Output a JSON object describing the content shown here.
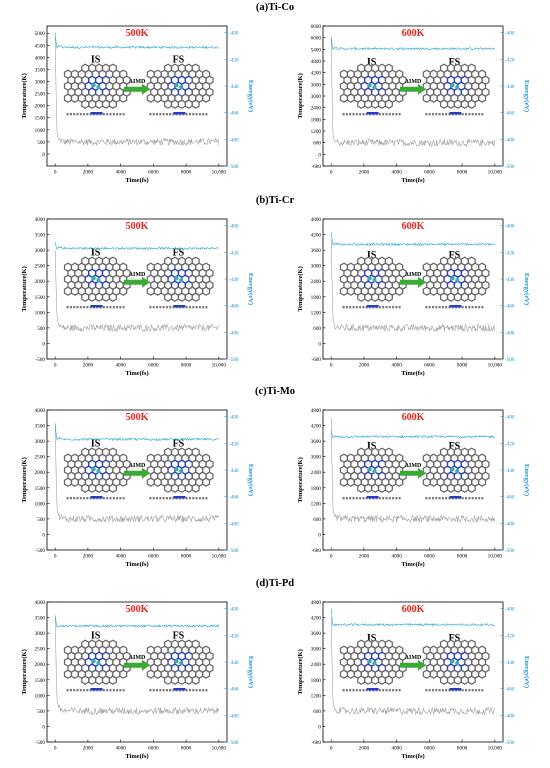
{
  "figure": {
    "rows": [
      {
        "label": "(a)Ti-Co"
      },
      {
        "label": "(b)Ti-Cr"
      },
      {
        "label": "(c)Ti-Mo"
      },
      {
        "label": "(d)Ti-Pd"
      }
    ],
    "inset_text": {
      "initial": "IS",
      "final": "FS",
      "arrow": "AIMD"
    }
  },
  "colors": {
    "temperature_line": "#9a9a9a",
    "energy_line": "#2aa7d6",
    "temperature_title": "#e8231f",
    "energy_axis": "#1f8fd0",
    "arrow": "#3aaa35"
  },
  "chart_data": [
    {
      "type": "line",
      "row": "(a)Ti-Co",
      "title": "500K",
      "xlabel": "Time(fs)",
      "ylabel": "Temperature(K)",
      "y2label": "Energy(eV)",
      "xlim": [
        -500,
        10500
      ],
      "xticks": [
        0,
        2000,
        4000,
        6000,
        8000,
        10000
      ],
      "xtick_labels": [
        "0",
        "2000",
        "4000",
        "6000",
        "8000",
        "10,000"
      ],
      "ylim": [
        -500,
        5300
      ],
      "yticks": [
        0,
        500,
        1000,
        1500,
        2000,
        2500,
        3000,
        3500,
        4000,
        4500,
        5000
      ],
      "y2lim": [
        -500,
        -395
      ],
      "y2ticks": [
        -500,
        -480,
        -460,
        -440,
        -420,
        -400
      ],
      "series": [
        {
          "axis": "temperature",
          "x": [
            0,
            100,
            200,
            500,
            1000,
            2000,
            4000,
            6000,
            8000,
            10000
          ],
          "y": [
            4800,
            900,
            600,
            500,
            500,
            500,
            500,
            500,
            500,
            500
          ]
        },
        {
          "axis": "energy",
          "x": [
            0,
            100,
            200,
            500,
            1000,
            2000,
            4000,
            6000,
            8000,
            10000
          ],
          "y": [
            -400,
            -412,
            -410,
            -411,
            -411,
            -411,
            -411,
            -411,
            -411,
            -411
          ]
        }
      ]
    },
    {
      "type": "line",
      "row": "(a)Ti-Co",
      "title": "600K",
      "xlabel": "Time(fs)",
      "ylabel": "Temperature(K)",
      "y2label": "Energy(eV)",
      "xlim": [
        -500,
        10500
      ],
      "xticks": [
        0,
        2000,
        4000,
        6000,
        8000,
        10000
      ],
      "xtick_labels": [
        "0",
        "2000",
        "4000",
        "6000",
        "8000",
        "10,000"
      ],
      "ylim": [
        -600,
        6600
      ],
      "yticks": [
        -600,
        0,
        600,
        1200,
        1800,
        2400,
        3000,
        3600,
        4200,
        4800,
        5400,
        6000,
        6600
      ],
      "y2lim": [
        -500,
        -395
      ],
      "y2ticks": [
        -500,
        -480,
        -460,
        -440,
        -420,
        -400
      ],
      "series": [
        {
          "axis": "temperature",
          "x": [
            0,
            100,
            200,
            500,
            1000,
            2000,
            4000,
            6000,
            8000,
            10000
          ],
          "y": [
            6000,
            1000,
            700,
            600,
            600,
            600,
            600,
            600,
            600,
            600
          ]
        },
        {
          "axis": "energy",
          "x": [
            0,
            100,
            200,
            500,
            1000,
            2000,
            4000,
            6000,
            8000,
            10000
          ],
          "y": [
            -403,
            -413,
            -411,
            -412,
            -412,
            -412,
            -412,
            -412,
            -412,
            -412
          ]
        }
      ]
    },
    {
      "type": "line",
      "row": "(b)Ti-Cr",
      "title": "500K",
      "xlabel": "Time(fs)",
      "ylabel": "Temperature(K)",
      "y2label": "Energy(eV)",
      "xlim": [
        -500,
        10500
      ],
      "xticks": [
        0,
        2000,
        4000,
        6000,
        8000,
        10000
      ],
      "xtick_labels": [
        "0",
        "2000",
        "4000",
        "6000",
        "8000",
        "10,000"
      ],
      "ylim": [
        -500,
        4000
      ],
      "yticks": [
        -500,
        0,
        500,
        1000,
        1500,
        2000,
        2500,
        3000,
        3500,
        4000
      ],
      "y2lim": [
        -500,
        -395
      ],
      "y2ticks": [
        -500,
        -480,
        -460,
        -440,
        -420,
        -400
      ],
      "series": [
        {
          "axis": "temperature",
          "x": [
            0,
            100,
            200,
            500,
            1000,
            2000,
            4000,
            6000,
            8000,
            10000
          ],
          "y": [
            3000,
            900,
            600,
            500,
            500,
            500,
            500,
            500,
            500,
            500
          ]
        },
        {
          "axis": "energy",
          "x": [
            0,
            100,
            200,
            500,
            1000,
            2000,
            4000,
            6000,
            8000,
            10000
          ],
          "y": [
            -412,
            -418,
            -416,
            -417,
            -417,
            -417,
            -417,
            -417,
            -417,
            -417
          ]
        }
      ]
    },
    {
      "type": "line",
      "row": "(b)Ti-Cr",
      "title": "600K",
      "xlabel": "Time(fs)",
      "ylabel": "Temperature(K)",
      "y2label": "Energy(eV)",
      "xlim": [
        -500,
        10500
      ],
      "xticks": [
        0,
        2000,
        4000,
        6000,
        8000,
        10000
      ],
      "xtick_labels": [
        "0",
        "2000",
        "4000",
        "6000",
        "8000",
        "10,000"
      ],
      "ylim": [
        -600,
        4800
      ],
      "yticks": [
        -600,
        0,
        600,
        1200,
        1800,
        2400,
        3000,
        3600,
        4200,
        4800
      ],
      "y2lim": [
        -500,
        -395
      ],
      "y2ticks": [
        -500,
        -480,
        -460,
        -440,
        -420,
        -400
      ],
      "series": [
        {
          "axis": "temperature",
          "x": [
            0,
            100,
            200,
            500,
            1000,
            2000,
            4000,
            6000,
            8000,
            10000
          ],
          "y": [
            4000,
            1000,
            700,
            600,
            600,
            600,
            600,
            600,
            600,
            600
          ]
        },
        {
          "axis": "energy",
          "x": [
            0,
            100,
            200,
            500,
            1000,
            2000,
            4000,
            6000,
            8000,
            10000
          ],
          "y": [
            -405,
            -415,
            -413,
            -414,
            -414,
            -414,
            -414,
            -414,
            -414,
            -414
          ]
        }
      ]
    },
    {
      "type": "line",
      "row": "(c)Ti-Mo",
      "title": "500K",
      "xlabel": "Time(fs)",
      "ylabel": "Temperature(K)",
      "y2label": "Energy(eV)",
      "xlim": [
        -500,
        10500
      ],
      "xticks": [
        0,
        2000,
        4000,
        6000,
        8000,
        10000
      ],
      "xtick_labels": [
        "0",
        "2000",
        "4000",
        "6000",
        "8000",
        "10,000"
      ],
      "ylim": [
        -500,
        4000
      ],
      "yticks": [
        -500,
        0,
        500,
        1000,
        1500,
        2000,
        2500,
        3000,
        3500,
        4000
      ],
      "y2lim": [
        -500,
        -395
      ],
      "y2ticks": [
        -500,
        -480,
        -460,
        -440,
        -420,
        -400
      ],
      "series": [
        {
          "axis": "temperature",
          "x": [
            0,
            100,
            200,
            500,
            1000,
            2000,
            4000,
            6000,
            8000,
            10000
          ],
          "y": [
            3500,
            900,
            600,
            500,
            500,
            500,
            500,
            500,
            500,
            500
          ]
        },
        {
          "axis": "energy",
          "x": [
            0,
            100,
            200,
            500,
            1000,
            2000,
            4000,
            6000,
            8000,
            10000
          ],
          "y": [
            -405,
            -418,
            -416,
            -417,
            -417,
            -417,
            -417,
            -417,
            -417,
            -417
          ]
        }
      ]
    },
    {
      "type": "line",
      "row": "(c)Ti-Mo",
      "title": "600K",
      "xlabel": "Time(fs)",
      "ylabel": "Temperature(K)",
      "y2label": "Energy(eV)",
      "xlim": [
        -500,
        10500
      ],
      "xticks": [
        0,
        2000,
        4000,
        6000,
        8000,
        10000
      ],
      "xtick_labels": [
        "0",
        "2000",
        "4000",
        "6000",
        "8000",
        "10,000"
      ],
      "ylim": [
        -600,
        4800
      ],
      "yticks": [
        -600,
        0,
        600,
        1200,
        1800,
        2400,
        3000,
        3600,
        4200,
        4800
      ],
      "y2lim": [
        -500,
        -395
      ],
      "y2ticks": [
        -500,
        -480,
        -460,
        -440,
        -420,
        -400
      ],
      "series": [
        {
          "axis": "temperature",
          "x": [
            0,
            100,
            200,
            500,
            1000,
            2000,
            4000,
            6000,
            8000,
            10000
          ],
          "y": [
            4500,
            1000,
            700,
            600,
            600,
            600,
            600,
            600,
            600,
            600
          ]
        },
        {
          "axis": "energy",
          "x": [
            0,
            100,
            200,
            500,
            1000,
            2000,
            4000,
            6000,
            8000,
            10000
          ],
          "y": [
            -410,
            -416,
            -415,
            -415,
            -415,
            -415,
            -415,
            -415,
            -415,
            -415
          ]
        }
      ]
    },
    {
      "type": "line",
      "row": "(d)Ti-Pd",
      "title": "500K",
      "xlabel": "Time(fs)",
      "ylabel": "Temperature(K)",
      "y2label": "Energy(eV)",
      "xlim": [
        -500,
        10500
      ],
      "xticks": [
        0,
        2000,
        4000,
        6000,
        8000,
        10000
      ],
      "xtick_labels": [
        "0",
        "2000",
        "4000",
        "6000",
        "8000",
        "10,000"
      ],
      "ylim": [
        -500,
        4000
      ],
      "yticks": [
        -500,
        0,
        500,
        1000,
        1500,
        2000,
        2500,
        3000,
        3500,
        4000
      ],
      "y2lim": [
        -500,
        -395
      ],
      "y2ticks": [
        -500,
        -480,
        -460,
        -440,
        -420,
        -400
      ],
      "series": [
        {
          "axis": "temperature",
          "x": [
            0,
            100,
            200,
            500,
            1000,
            2000,
            4000,
            6000,
            8000,
            10000
          ],
          "y": [
            3500,
            900,
            600,
            500,
            500,
            500,
            500,
            500,
            500,
            500
          ]
        },
        {
          "axis": "energy",
          "x": [
            0,
            100,
            200,
            500,
            1000,
            2000,
            4000,
            6000,
            8000,
            10000
          ],
          "y": [
            -405,
            -414,
            -413,
            -413,
            -413,
            -413,
            -413,
            -413,
            -413,
            -413
          ]
        }
      ]
    },
    {
      "type": "line",
      "row": "(d)Ti-Pd",
      "title": "600K",
      "xlabel": "Time(fs)",
      "ylabel": "Temperature(K)",
      "y2label": "Energy(eV)",
      "xlim": [
        -500,
        10500
      ],
      "xticks": [
        0,
        2000,
        4000,
        6000,
        8000,
        10000
      ],
      "xtick_labels": [
        "0",
        "2000",
        "4000",
        "6000",
        "8000",
        "10,000"
      ],
      "ylim": [
        -600,
        4800
      ],
      "yticks": [
        -600,
        0,
        600,
        1200,
        1800,
        2400,
        3000,
        3600,
        4200,
        4800
      ],
      "y2lim": [
        -500,
        -395
      ],
      "y2ticks": [
        -500,
        -480,
        -460,
        -440,
        -420,
        -400
      ],
      "series": [
        {
          "axis": "temperature",
          "x": [
            0,
            100,
            200,
            500,
            1000,
            2000,
            4000,
            6000,
            8000,
            10000
          ],
          "y": [
            4200,
            1000,
            700,
            600,
            600,
            600,
            600,
            600,
            600,
            600
          ]
        },
        {
          "axis": "energy",
          "x": [
            0,
            100,
            200,
            500,
            1000,
            2000,
            4000,
            6000,
            8000,
            10000
          ],
          "y": [
            -400,
            -413,
            -412,
            -412,
            -412,
            -412,
            -412,
            -412,
            -412,
            -412
          ]
        }
      ]
    }
  ]
}
